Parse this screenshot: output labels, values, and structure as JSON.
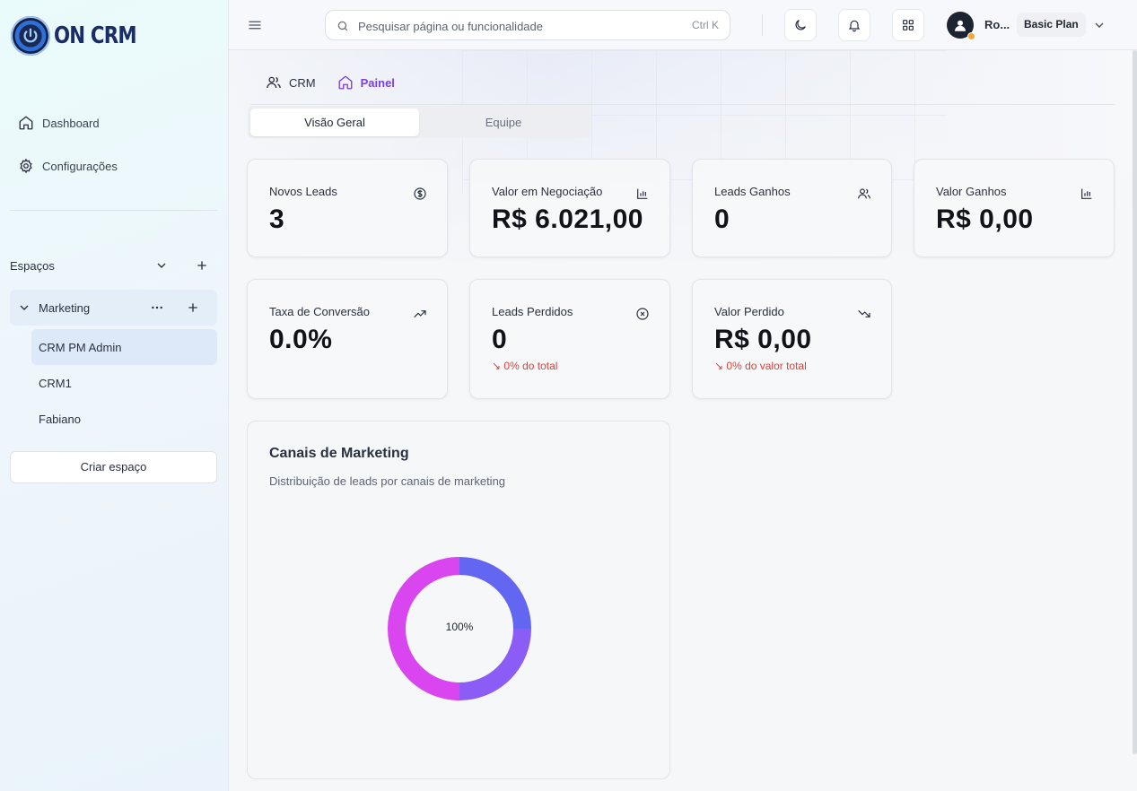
{
  "brand": {
    "name": "ON CRM"
  },
  "sidebar": {
    "nav": [
      {
        "label": "Dashboard",
        "icon": "home-icon"
      },
      {
        "label": "Configurações",
        "icon": "gear-icon"
      }
    ],
    "spaces_label": "Espaços",
    "space": {
      "label": "Marketing"
    },
    "sub_items": [
      {
        "label": "CRM PM Admin",
        "active": true
      },
      {
        "label": "CRM1",
        "active": false
      },
      {
        "label": "Fabiano",
        "active": false
      }
    ],
    "create_label": "Criar espaço"
  },
  "header": {
    "search_placeholder": "Pesquisar página ou funcionalidade",
    "search_shortcut": "Ctrl K",
    "user_name": "Ro...",
    "plan": "Basic Plan"
  },
  "breadcrumb": {
    "crm": "CRM",
    "painel": "Painel"
  },
  "tabs": {
    "overview": "Visão Geral",
    "team": "Equipe"
  },
  "metrics": [
    {
      "title": "Novos Leads",
      "value": "3",
      "icon": "dollar-circle-icon"
    },
    {
      "title": "Valor em Negociação",
      "value": "R$ 6.021,00",
      "icon": "bar-chart-icon"
    },
    {
      "title": "Leads Ganhos",
      "value": "0",
      "icon": "users-icon"
    },
    {
      "title": "Valor Ganhos",
      "value": "R$ 0,00",
      "icon": "bar-chart-icon"
    },
    {
      "title": "Taxa de Conversão",
      "value": "0.0%",
      "icon": "trending-up-icon"
    },
    {
      "title": "Leads Perdidos",
      "value": "0",
      "icon": "x-circle-icon",
      "sub": "0% do total"
    },
    {
      "title": "Valor Perdido",
      "value": "R$ 0,00",
      "icon": "trending-down-icon",
      "sub": "0% do valor total"
    }
  ],
  "chart": {
    "title": "Canais de Marketing",
    "subtitle": "Distribuição de leads por canais de marketing",
    "center_label": "100%"
  },
  "colors": {
    "accent": "#7a3fe0",
    "negative": "#e0413c",
    "donut_blue": "#6366f1",
    "donut_violet": "#8b5cf6",
    "donut_magenta": "#d946ef"
  },
  "chart_data": {
    "type": "pie",
    "categories": [
      ""
    ],
    "values": [
      100
    ]
  }
}
